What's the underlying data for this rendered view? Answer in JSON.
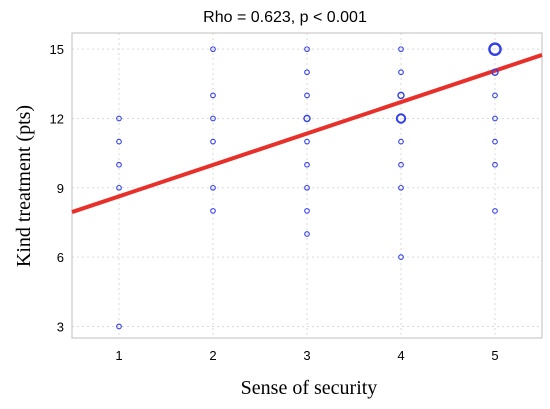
{
  "chart_data": {
    "type": "scatter",
    "title": "Rho = 0.623,   p < 0.001",
    "xlabel": "Sense of security",
    "ylabel": "Kind treatment (pts)",
    "xlim": [
      0.5,
      5.5
    ],
    "ylim": [
      2.5,
      15.7
    ],
    "xticks": [
      1,
      2,
      3,
      4,
      5
    ],
    "yticks": [
      3,
      6,
      9,
      12,
      15
    ],
    "grid": true,
    "points": [
      {
        "x": 1,
        "y": 3,
        "w": 1
      },
      {
        "x": 1,
        "y": 9,
        "w": 1
      },
      {
        "x": 1,
        "y": 10,
        "w": 1
      },
      {
        "x": 1,
        "y": 11,
        "w": 1
      },
      {
        "x": 1,
        "y": 12,
        "w": 1
      },
      {
        "x": 2,
        "y": 8,
        "w": 1
      },
      {
        "x": 2,
        "y": 9,
        "w": 1
      },
      {
        "x": 2,
        "y": 11,
        "w": 1
      },
      {
        "x": 2,
        "y": 12,
        "w": 1
      },
      {
        "x": 2,
        "y": 13,
        "w": 1
      },
      {
        "x": 2,
        "y": 15,
        "w": 1
      },
      {
        "x": 3,
        "y": 7,
        "w": 1
      },
      {
        "x": 3,
        "y": 8,
        "w": 1
      },
      {
        "x": 3,
        "y": 9,
        "w": 1
      },
      {
        "x": 3,
        "y": 10,
        "w": 1
      },
      {
        "x": 3,
        "y": 11,
        "w": 1
      },
      {
        "x": 3,
        "y": 12,
        "w": 2
      },
      {
        "x": 3,
        "y": 13,
        "w": 1
      },
      {
        "x": 3,
        "y": 14,
        "w": 1
      },
      {
        "x": 3,
        "y": 15,
        "w": 1
      },
      {
        "x": 4,
        "y": 6,
        "w": 1
      },
      {
        "x": 4,
        "y": 9,
        "w": 1
      },
      {
        "x": 4,
        "y": 10,
        "w": 1
      },
      {
        "x": 4,
        "y": 11,
        "w": 1
      },
      {
        "x": 4,
        "y": 12,
        "w": 3
      },
      {
        "x": 4,
        "y": 13,
        "w": 2
      },
      {
        "x": 4,
        "y": 14,
        "w": 1
      },
      {
        "x": 4,
        "y": 15,
        "w": 1
      },
      {
        "x": 5,
        "y": 8,
        "w": 1
      },
      {
        "x": 5,
        "y": 10,
        "w": 1
      },
      {
        "x": 5,
        "y": 11,
        "w": 1
      },
      {
        "x": 5,
        "y": 12,
        "w": 1
      },
      {
        "x": 5,
        "y": 13,
        "w": 1
      },
      {
        "x": 5,
        "y": 14,
        "w": 2
      },
      {
        "x": 5,
        "y": 15,
        "w": 4
      }
    ],
    "fit_line": {
      "x": [
        0.5,
        5.5
      ],
      "y": [
        7.95,
        14.75
      ]
    },
    "point_color": "#3340e6",
    "line_color": "#e8302b"
  }
}
